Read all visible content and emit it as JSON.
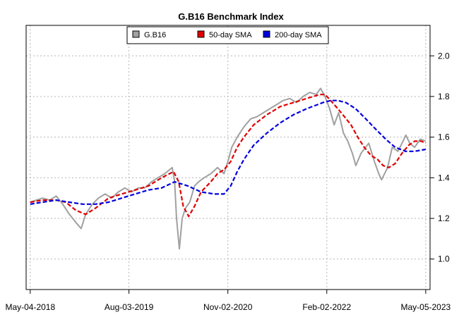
{
  "chart_data": {
    "type": "line",
    "title": "G.B16 Benchmark Index",
    "xlabel": "",
    "ylabel": "",
    "x_tick_labels": [
      "May-04-2018",
      "Aug-03-2019",
      "Nov-02-2020",
      "Feb-02-2022",
      "May-05-2023"
    ],
    "xlim": [
      "2018-04-15",
      "2023-05-25"
    ],
    "y_ticks": [
      1.0,
      1.2,
      1.4,
      1.6,
      1.8,
      2.0
    ],
    "y_tick_labels": [
      "1.0",
      "1.2",
      "1.4",
      "1.6",
      "1.8",
      "2.0"
    ],
    "ylim": [
      0.85,
      2.15
    ],
    "y_axis_side": "right",
    "grid": true,
    "legend_placement": "top-center",
    "series": [
      {
        "name": "G.B16",
        "color": "#A0A0A0",
        "style": "solid",
        "x": [
          "2018-05-04",
          "2018-06-01",
          "2018-07-01",
          "2018-08-01",
          "2018-09-01",
          "2018-10-01",
          "2018-11-01",
          "2018-12-01",
          "2018-12-25",
          "2019-01-15",
          "2019-02-15",
          "2019-03-15",
          "2019-04-15",
          "2019-05-15",
          "2019-06-15",
          "2019-07-15",
          "2019-08-15",
          "2019-09-15",
          "2019-10-15",
          "2019-11-15",
          "2019-12-15",
          "2020-01-15",
          "2020-02-19",
          "2020-03-01",
          "2020-03-10",
          "2020-03-23",
          "2020-04-05",
          "2020-04-20",
          "2020-05-10",
          "2020-06-01",
          "2020-06-20",
          "2020-07-15",
          "2020-08-15",
          "2020-09-15",
          "2020-10-15",
          "2020-11-02",
          "2020-11-20",
          "2020-12-15",
          "2021-01-15",
          "2021-02-15",
          "2021-03-15",
          "2021-04-15",
          "2021-05-15",
          "2021-06-15",
          "2021-07-15",
          "2021-08-15",
          "2021-09-15",
          "2021-10-15",
          "2021-11-15",
          "2021-12-15",
          "2022-01-04",
          "2022-01-25",
          "2022-02-15",
          "2022-03-08",
          "2022-03-29",
          "2022-04-20",
          "2022-05-10",
          "2022-05-31",
          "2022-06-16",
          "2022-07-10",
          "2022-08-15",
          "2022-09-10",
          "2022-09-30",
          "2022-10-13",
          "2022-11-10",
          "2022-12-01",
          "2022-12-28",
          "2023-01-20",
          "2023-02-02",
          "2023-02-20",
          "2023-03-15",
          "2023-04-10",
          "2023-05-05"
        ],
        "y": [
          1.28,
          1.29,
          1.3,
          1.29,
          1.31,
          1.27,
          1.22,
          1.18,
          1.15,
          1.22,
          1.27,
          1.3,
          1.32,
          1.3,
          1.33,
          1.35,
          1.33,
          1.35,
          1.35,
          1.38,
          1.4,
          1.42,
          1.45,
          1.38,
          1.2,
          1.05,
          1.2,
          1.25,
          1.28,
          1.36,
          1.38,
          1.4,
          1.42,
          1.45,
          1.42,
          1.48,
          1.55,
          1.6,
          1.65,
          1.69,
          1.7,
          1.72,
          1.74,
          1.76,
          1.78,
          1.79,
          1.77,
          1.8,
          1.82,
          1.81,
          1.84,
          1.8,
          1.74,
          1.66,
          1.72,
          1.62,
          1.58,
          1.52,
          1.46,
          1.52,
          1.57,
          1.48,
          1.42,
          1.39,
          1.45,
          1.55,
          1.53,
          1.58,
          1.61,
          1.57,
          1.55,
          1.59,
          1.58
        ]
      },
      {
        "name": "50-day SMA",
        "color": "#E00000",
        "style": "dashed",
        "x": [
          "2018-05-04",
          "2018-07-01",
          "2018-09-01",
          "2018-10-15",
          "2018-12-01",
          "2019-01-15",
          "2019-03-01",
          "2019-05-01",
          "2019-07-01",
          "2019-09-01",
          "2019-11-01",
          "2020-01-01",
          "2020-02-25",
          "2020-03-20",
          "2020-04-10",
          "2020-05-05",
          "2020-06-01",
          "2020-07-01",
          "2020-08-15",
          "2020-09-15",
          "2020-10-15",
          "2020-11-15",
          "2020-12-15",
          "2021-01-15",
          "2021-03-01",
          "2021-05-01",
          "2021-07-01",
          "2021-09-01",
          "2021-11-01",
          "2022-01-01",
          "2022-01-25",
          "2022-02-20",
          "2022-03-25",
          "2022-04-25",
          "2022-05-25",
          "2022-06-25",
          "2022-07-25",
          "2022-08-25",
          "2022-09-25",
          "2022-10-20",
          "2022-11-15",
          "2022-12-15",
          "2023-01-15",
          "2023-02-15",
          "2023-03-15",
          "2023-04-15",
          "2023-05-05"
        ],
        "y": [
          1.28,
          1.29,
          1.29,
          1.28,
          1.24,
          1.22,
          1.25,
          1.3,
          1.32,
          1.34,
          1.36,
          1.4,
          1.43,
          1.38,
          1.26,
          1.21,
          1.26,
          1.33,
          1.38,
          1.42,
          1.44,
          1.48,
          1.55,
          1.6,
          1.66,
          1.71,
          1.75,
          1.77,
          1.79,
          1.81,
          1.81,
          1.78,
          1.74,
          1.7,
          1.66,
          1.6,
          1.55,
          1.51,
          1.49,
          1.46,
          1.45,
          1.47,
          1.52,
          1.56,
          1.58,
          1.58,
          1.57
        ]
      },
      {
        "name": "200-day SMA",
        "color": "#0000E0",
        "style": "dashed",
        "x": [
          "2018-05-04",
          "2018-07-01",
          "2018-09-01",
          "2018-11-01",
          "2019-01-01",
          "2019-03-01",
          "2019-05-01",
          "2019-07-01",
          "2019-09-01",
          "2019-11-01",
          "2020-01-01",
          "2020-03-01",
          "2020-05-01",
          "2020-07-01",
          "2020-09-01",
          "2020-10-15",
          "2020-11-15",
          "2020-12-15",
          "2021-01-15",
          "2021-03-01",
          "2021-05-01",
          "2021-07-01",
          "2021-09-01",
          "2021-11-01",
          "2022-01-15",
          "2022-02-20",
          "2022-03-25",
          "2022-05-01",
          "2022-06-15",
          "2022-08-01",
          "2022-09-15",
          "2022-11-01",
          "2022-12-15",
          "2023-02-01",
          "2023-03-15",
          "2023-05-05"
        ],
        "y": [
          1.27,
          1.28,
          1.29,
          1.28,
          1.27,
          1.27,
          1.28,
          1.3,
          1.32,
          1.34,
          1.35,
          1.38,
          1.36,
          1.33,
          1.32,
          1.32,
          1.36,
          1.43,
          1.49,
          1.56,
          1.62,
          1.67,
          1.71,
          1.74,
          1.77,
          1.78,
          1.78,
          1.77,
          1.74,
          1.69,
          1.64,
          1.59,
          1.55,
          1.53,
          1.53,
          1.54
        ]
      }
    ]
  }
}
